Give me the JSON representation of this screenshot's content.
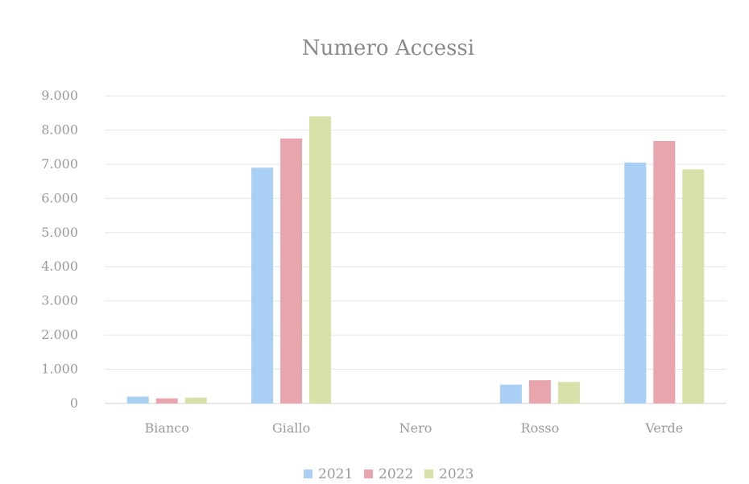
{
  "chart_data": {
    "type": "bar",
    "title": "Numero Accessi",
    "xlabel": "",
    "ylabel": "",
    "categories": [
      "Bianco",
      "Giallo",
      "Nero",
      "Rosso",
      "Verde"
    ],
    "series": [
      {
        "name": "2021",
        "color": "#a9cff5",
        "values": [
          200,
          6900,
          0,
          550,
          7050
        ]
      },
      {
        "name": "2022",
        "color": "#e8a5ad",
        "values": [
          150,
          7750,
          0,
          680,
          7680
        ]
      },
      {
        "name": "2023",
        "color": "#d6e2a8",
        "values": [
          170,
          8400,
          0,
          630,
          6850
        ]
      }
    ],
    "ylim": [
      0,
      9000
    ],
    "yticks": [
      0,
      1000,
      2000,
      3000,
      4000,
      5000,
      6000,
      7000,
      8000,
      9000
    ],
    "ytick_labels": [
      "0",
      "1.000",
      "2.000",
      "3.000",
      "4.000",
      "5.000",
      "6.000",
      "7.000",
      "8.000",
      "9.000"
    ],
    "grid": true,
    "legend_position": "bottom"
  }
}
